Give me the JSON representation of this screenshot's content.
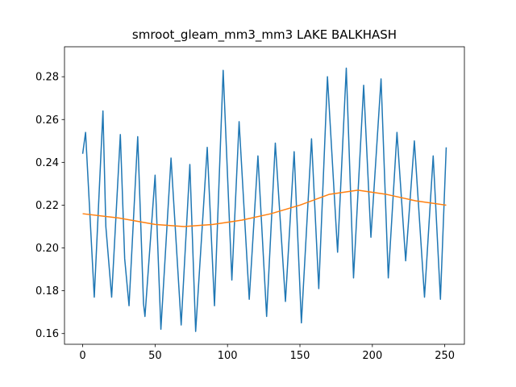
{
  "chart_data": {
    "type": "line",
    "title": "smroot_gleam_mm3_mm3 LAKE BALKHASH",
    "xlim": [
      -12.55,
      263.55
    ],
    "ylim": [
      0.155,
      0.294
    ],
    "xticks": [
      0,
      50,
      100,
      150,
      200,
      250
    ],
    "yticks": [
      0.16,
      0.18,
      {
        "value": 0.2,
        "label": "0.20"
      },
      0.22,
      0.24,
      0.26,
      0.28
    ],
    "series": [
      {
        "color": "#1f77b4",
        "x": [
          0,
          2,
          8,
          14,
          16,
          20,
          26,
          29,
          32,
          38,
          42,
          43,
          50,
          54,
          61,
          68,
          74,
          78,
          86,
          91,
          97,
          103,
          108,
          115,
          121,
          127,
          133,
          140,
          146,
          151,
          158,
          163,
          169,
          176,
          182,
          187,
          194,
          199,
          206,
          211,
          217,
          223,
          229,
          236,
          242,
          247,
          251
        ],
        "values": [
          0.244,
          0.254,
          0.177,
          0.264,
          0.21,
          0.177,
          0.253,
          0.195,
          0.173,
          0.252,
          0.174,
          0.168,
          0.234,
          0.162,
          0.242,
          0.164,
          0.239,
          0.161,
          0.247,
          0.173,
          0.283,
          0.185,
          0.259,
          0.176,
          0.243,
          0.168,
          0.249,
          0.175,
          0.245,
          0.165,
          0.251,
          0.181,
          0.28,
          0.198,
          0.284,
          0.186,
          0.276,
          0.205,
          0.279,
          0.186,
          0.254,
          0.194,
          0.25,
          0.177,
          0.243,
          0.176,
          0.247
        ]
      },
      {
        "color": "#ff7f0e",
        "x": [
          0,
          25,
          50,
          70,
          90,
          110,
          130,
          150,
          170,
          190,
          210,
          230,
          251
        ],
        "values": [
          0.216,
          0.214,
          0.211,
          0.21,
          0.211,
          0.213,
          0.216,
          0.22,
          0.225,
          0.227,
          0.225,
          0.222,
          0.22
        ]
      }
    ]
  }
}
